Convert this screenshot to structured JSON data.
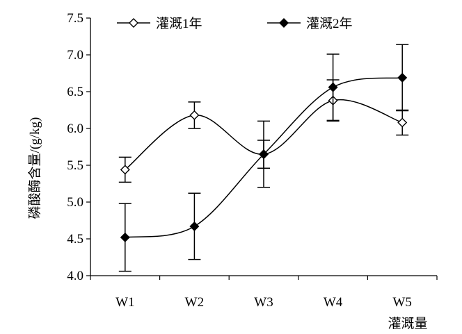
{
  "chart_data": {
    "type": "line",
    "title": "",
    "xlabel": "灌溉量",
    "ylabel": "磷酸酶含量/(g/kg)",
    "categories": [
      "W1",
      "W2",
      "W3",
      "W4",
      "W5"
    ],
    "ylim": [
      4.0,
      7.5
    ],
    "yticks": [
      "4.0",
      "4.5",
      "5.0",
      "5.5",
      "6.0",
      "6.5",
      "7.0",
      "7.5"
    ],
    "grid": false,
    "legend_position": "top",
    "smooth": true,
    "series": [
      {
        "name": "灌溉1年",
        "marker": "diamond-open",
        "color": "#000000",
        "values": [
          5.44,
          6.18,
          5.65,
          6.38,
          6.08
        ],
        "error": [
          0.17,
          0.18,
          0.19,
          0.28,
          0.17
        ]
      },
      {
        "name": "灌溉2年",
        "marker": "diamond-filled",
        "color": "#000000",
        "values": [
          4.52,
          4.67,
          5.65,
          6.56,
          6.69
        ],
        "error": [
          0.46,
          0.45,
          0.45,
          0.45,
          0.45
        ]
      }
    ]
  }
}
